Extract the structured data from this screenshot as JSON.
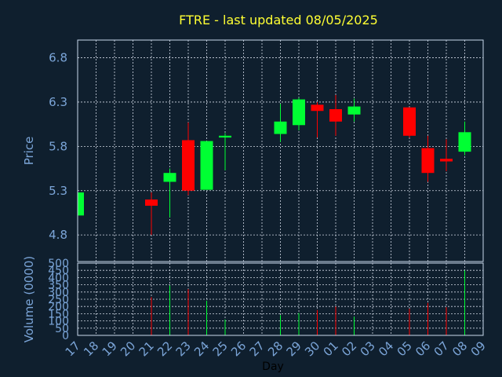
{
  "chart_data": {
    "type": "candlestick",
    "title": "FTRE - last updated 08/05/2025",
    "xlabel": "Day",
    "price_panel": {
      "ylabel": "Price",
      "ylim": [
        4.5,
        7.0
      ],
      "yticks": [
        "4.8",
        "5.3",
        "5.8",
        "6.3",
        "6.8"
      ],
      "grid": true
    },
    "volume_panel": {
      "ylabel": "Volume (0000)",
      "ylim": [
        0,
        500
      ],
      "yticks": [
        "0",
        "50",
        "100",
        "150",
        "200",
        "250",
        "300",
        "350",
        "400",
        "450",
        "500"
      ],
      "grid": true
    },
    "x_tick_labels": [
      "17",
      "18",
      "19",
      "20",
      "21",
      "22",
      "23",
      "24",
      "25",
      "26",
      "27",
      "28",
      "29",
      "30",
      "01",
      "02",
      "03",
      "04",
      "05",
      "06",
      "07",
      "08",
      "09"
    ],
    "candles": [
      {
        "day": "17",
        "open": 5.02,
        "close": 5.28,
        "high": 5.28,
        "low": 5.02,
        "volume": 0
      },
      {
        "day": "21",
        "open": 5.2,
        "close": 5.13,
        "high": 5.28,
        "low": 4.8,
        "volume": 265
      },
      {
        "day": "22",
        "open": 5.4,
        "close": 5.5,
        "high": 5.55,
        "low": 5.0,
        "volume": 345
      },
      {
        "day": "23",
        "open": 5.87,
        "close": 5.3,
        "high": 6.07,
        "low": 5.25,
        "volume": 320
      },
      {
        "day": "24",
        "open": 5.31,
        "close": 5.86,
        "high": 5.86,
        "low": 5.31,
        "volume": 240
      },
      {
        "day": "25",
        "open": 5.9,
        "close": 5.92,
        "high": 5.95,
        "low": 5.53,
        "volume": 110
      },
      {
        "day": "28",
        "open": 5.94,
        "close": 6.08,
        "high": 6.28,
        "low": 5.85,
        "volume": 140
      },
      {
        "day": "29",
        "open": 6.04,
        "close": 6.33,
        "high": 6.35,
        "low": 5.98,
        "volume": 155
      },
      {
        "day": "30",
        "open": 6.27,
        "close": 6.2,
        "high": 6.3,
        "low": 5.9,
        "volume": 175
      },
      {
        "day": "01",
        "open": 6.22,
        "close": 6.08,
        "high": 6.38,
        "low": 5.92,
        "volume": 200
      },
      {
        "day": "02",
        "open": 6.16,
        "close": 6.25,
        "high": 6.34,
        "low": 6.08,
        "volume": 130
      },
      {
        "day": "05",
        "open": 6.24,
        "close": 5.92,
        "high": 6.24,
        "low": 5.9,
        "volume": 185
      },
      {
        "day": "06",
        "open": 5.78,
        "close": 5.5,
        "high": 5.92,
        "low": 5.4,
        "volume": 225
      },
      {
        "day": "07",
        "open": 5.66,
        "close": 5.63,
        "high": 5.88,
        "low": 5.52,
        "volume": 195
      },
      {
        "day": "08",
        "open": 5.74,
        "close": 5.96,
        "high": 6.08,
        "low": 5.7,
        "volume": 450
      }
    ],
    "colors": {
      "background": "#0f1f2e",
      "up": "#00ff33",
      "down": "#ff0000",
      "title": "#ffff33",
      "tick_text": "#7ba5d8",
      "frame": "#c8d8ec",
      "grid": "#d0d8e4"
    }
  }
}
